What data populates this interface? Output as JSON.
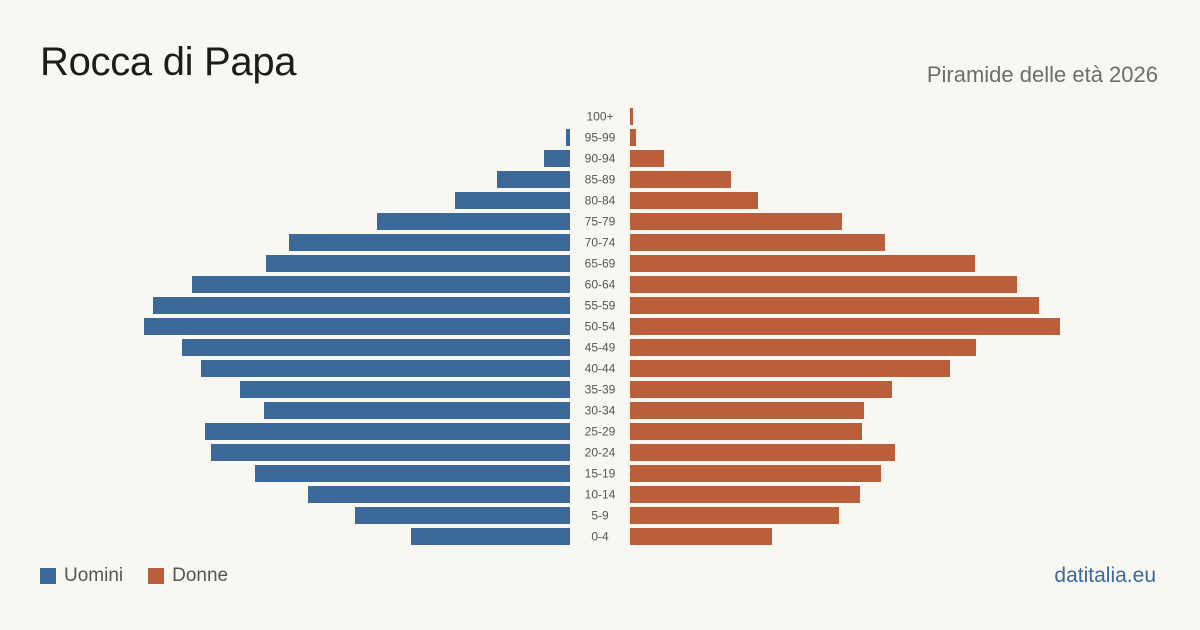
{
  "header": {
    "title": "Rocca di Papa",
    "subtitle": "Piramide delle età 2026"
  },
  "legend": {
    "men_label": "Uomini",
    "women_label": "Donne"
  },
  "colors": {
    "men": "#3b6a9a",
    "women": "#ba5e3c"
  },
  "brand": "datitalia.eu",
  "chart_data": {
    "type": "bar",
    "orientation": "horizontal-pyramid",
    "categories": [
      "100+",
      "95-99",
      "90-94",
      "85-89",
      "80-84",
      "75-79",
      "70-74",
      "65-69",
      "60-64",
      "55-59",
      "50-54",
      "45-49",
      "40-44",
      "35-39",
      "30-34",
      "25-29",
      "20-24",
      "15-19",
      "10-14",
      "5-9",
      "0-4"
    ],
    "series": [
      {
        "name": "Uomini",
        "values": [
          0,
          4,
          26,
          73,
          115,
          193,
          281,
          304,
          378,
          417,
          426,
          388,
          369,
          330,
          306,
          365,
          359,
          315,
          262,
          215,
          159
        ]
      },
      {
        "name": "Donne",
        "values": [
          3,
          6,
          34,
          101,
          128,
          212,
          255,
          345,
          387,
          409,
          430,
          346,
          320,
          262,
          234,
          232,
          265,
          251,
          230,
          209,
          142
        ]
      }
    ],
    "legend_position": "bottom-left",
    "grid": false
  }
}
